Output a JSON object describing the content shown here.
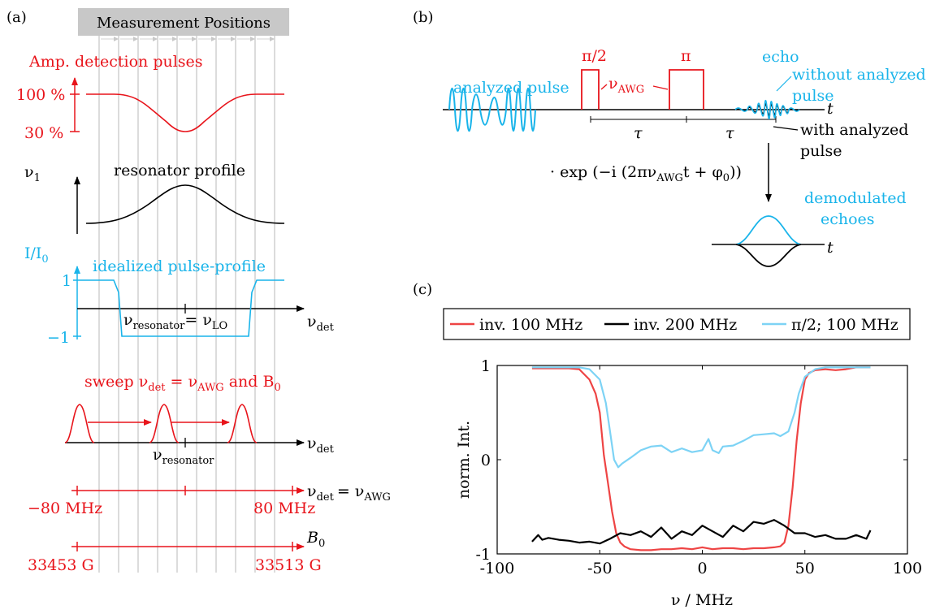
{
  "colors": {
    "red": "#e8141b",
    "cyan": "#19b4ea",
    "black": "#000000",
    "gray": "#c8c8c8",
    "lightblue": "#7dd3f5",
    "chart_red": "#ee4444"
  },
  "panel_a": {
    "label": "(a)",
    "measurement_header": "Measurement Positions",
    "amp_title": "Amp. detection pulses",
    "amp_high": "100 %",
    "amp_low": "30 %",
    "nu1": "ν",
    "nu1_sub": "1",
    "resonator_profile": "resonator profile",
    "i_axis": "I/I",
    "i_axis_sub": "0",
    "idealized": "idealized pulse-profile",
    "one": "1",
    "minus_one": "−1",
    "nu_res_eq": "ν",
    "nu_res_sub": "resonator",
    "eq_nu_lo": "= ν",
    "lo_sub": "LO",
    "nu_det": "ν",
    "det_sub": "det",
    "sweep_prefix": "sweep ν",
    "sweep_det_sub": "det",
    "sweep_eq": " = ν",
    "sweep_awg_sub": "AWG",
    "sweep_and": " and B",
    "sweep_b_sub": "0",
    "nu_resonator2": "ν",
    "nu_resonator2_sub": "resonator",
    "axis_det_eq": "= ν",
    "axis_awg_sub": "AWG",
    "freq_left": "−80 MHz",
    "freq_right": "80 MHz",
    "b0": "B",
    "b0_sub": "0",
    "field_left": "33453 G",
    "field_right": "33513 G"
  },
  "panel_b": {
    "label": "(b)",
    "analyzed_pulse": "analyzed pulse",
    "pi_half": "π/2",
    "pi": "π",
    "nu_awg": "ν",
    "nu_awg_sub": "AWG",
    "echo": "echo",
    "without_line1": "without analyzed",
    "without_line2": "pulse",
    "with_line1": "with analyzed",
    "with_line2": "pulse",
    "t": "t",
    "tau": "τ",
    "demod_formula": "· exp (−i (2πν",
    "demod_sub": "AWG",
    "demod_tail": "t + φ",
    "demod_phi_sub": "0",
    "demod_close": "))",
    "demod_line1": "demodulated",
    "demod_line2": "echoes"
  },
  "panel_c": {
    "label": "(c)"
  },
  "chart_data": {
    "type": "line",
    "xlabel": "ν / MHz",
    "ylabel": "norm. Int.",
    "xlim": [
      -100,
      100
    ],
    "ylim": [
      -1,
      1
    ],
    "xticks": [
      "-100",
      "-50",
      "0",
      "50",
      "100"
    ],
    "yticks": [
      "-1",
      "0",
      "1"
    ],
    "legend_position": "top",
    "series": [
      {
        "name": "inv. 100 MHz",
        "color": "#ee4444",
        "x": [
          -83,
          -75,
          -65,
          -60,
          -55,
          -52,
          -50,
          -48,
          -46,
          -44,
          -42,
          -40,
          -38,
          -35,
          -30,
          -25,
          -20,
          -15,
          -10,
          -5,
          0,
          5,
          10,
          15,
          20,
          25,
          30,
          35,
          38,
          40,
          42,
          44,
          46,
          48,
          50,
          52,
          55,
          60,
          65,
          70,
          75,
          82
        ],
        "y": [
          0.97,
          0.97,
          0.97,
          0.96,
          0.85,
          0.7,
          0.5,
          0.05,
          -0.25,
          -0.55,
          -0.78,
          -0.88,
          -0.92,
          -0.95,
          -0.96,
          -0.96,
          -0.95,
          -0.95,
          -0.94,
          -0.95,
          -0.93,
          -0.95,
          -0.94,
          -0.94,
          -0.95,
          -0.94,
          -0.94,
          -0.93,
          -0.92,
          -0.88,
          -0.7,
          -0.3,
          0.2,
          0.6,
          0.85,
          0.92,
          0.95,
          0.96,
          0.95,
          0.96,
          0.98,
          0.98
        ]
      },
      {
        "name": "inv. 200 MHz",
        "color": "#000000",
        "x": [
          -83,
          -80,
          -78,
          -75,
          -70,
          -65,
          -60,
          -55,
          -50,
          -45,
          -40,
          -35,
          -30,
          -25,
          -20,
          -15,
          -10,
          -5,
          0,
          5,
          10,
          15,
          20,
          25,
          30,
          35,
          40,
          45,
          50,
          55,
          60,
          65,
          70,
          75,
          80,
          82
        ],
        "y": [
          -0.87,
          -0.8,
          -0.85,
          -0.83,
          -0.85,
          -0.86,
          -0.88,
          -0.87,
          -0.89,
          -0.84,
          -0.78,
          -0.8,
          -0.76,
          -0.82,
          -0.72,
          -0.84,
          -0.76,
          -0.8,
          -0.7,
          -0.76,
          -0.82,
          -0.7,
          -0.76,
          -0.66,
          -0.68,
          -0.64,
          -0.7,
          -0.78,
          -0.78,
          -0.82,
          -0.8,
          -0.84,
          -0.84,
          -0.8,
          -0.84,
          -0.75
        ]
      },
      {
        "name": "π/2; 100 MHz",
        "color": "#7dd3f5",
        "x": [
          -83,
          -70,
          -60,
          -55,
          -50,
          -47,
          -45,
          -43,
          -41,
          -39,
          -35,
          -30,
          -25,
          -20,
          -15,
          -10,
          -5,
          0,
          3,
          5,
          8,
          10,
          15,
          20,
          25,
          30,
          35,
          38,
          42,
          45,
          47,
          50,
          55,
          60,
          70,
          82
        ],
        "y": [
          0.98,
          0.98,
          0.98,
          0.96,
          0.85,
          0.6,
          0.3,
          0.0,
          -0.08,
          -0.04,
          0.02,
          0.1,
          0.14,
          0.15,
          0.08,
          0.12,
          0.08,
          0.1,
          0.22,
          0.1,
          0.07,
          0.14,
          0.15,
          0.2,
          0.26,
          0.27,
          0.28,
          0.25,
          0.3,
          0.5,
          0.7,
          0.88,
          0.96,
          0.98,
          0.98,
          0.98
        ]
      }
    ]
  }
}
